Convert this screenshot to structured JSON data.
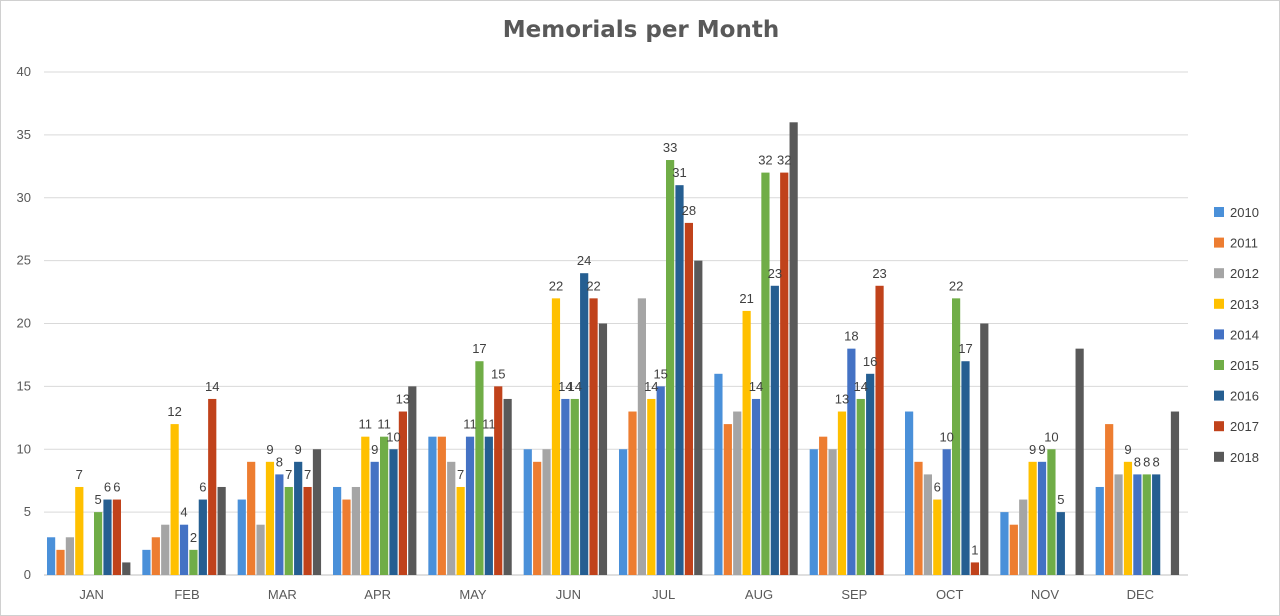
{
  "chart_data": {
    "type": "bar",
    "title": "Memorials per Month",
    "xlabel": "",
    "ylabel": "",
    "ylim": [
      0,
      40
    ],
    "yticks": [
      0,
      5,
      10,
      15,
      20,
      25,
      30,
      35,
      40
    ],
    "grid": true,
    "legend": "right",
    "categories": [
      "JAN",
      "FEB",
      "MAR",
      "APR",
      "MAY",
      "JUN",
      "JUL",
      "AUG",
      "SEP",
      "OCT",
      "NOV",
      "DEC"
    ],
    "series": [
      {
        "name": "2010",
        "color": "#4a90d9",
        "values": [
          3,
          2,
          6,
          7,
          11,
          10,
          10,
          16,
          10,
          13,
          5,
          7
        ],
        "labels": [
          false,
          false,
          false,
          false,
          false,
          false,
          false,
          false,
          false,
          false,
          false,
          false
        ]
      },
      {
        "name": "2011",
        "color": "#ed7d31",
        "values": [
          2,
          3,
          9,
          6,
          11,
          9,
          13,
          12,
          11,
          9,
          4,
          12
        ],
        "labels": [
          false,
          false,
          false,
          false,
          false,
          false,
          false,
          false,
          false,
          false,
          false,
          false
        ]
      },
      {
        "name": "2012",
        "color": "#a5a5a5",
        "values": [
          3,
          4,
          4,
          7,
          9,
          10,
          22,
          13,
          10,
          8,
          6,
          8
        ],
        "labels": [
          false,
          false,
          false,
          false,
          false,
          false,
          false,
          false,
          false,
          false,
          false,
          false
        ]
      },
      {
        "name": "2013",
        "color": "#ffc000",
        "values": [
          7,
          12,
          9,
          11,
          7,
          22,
          14,
          21,
          13,
          6,
          9,
          9
        ],
        "labels": [
          true,
          true,
          true,
          true,
          true,
          true,
          true,
          true,
          true,
          true,
          true,
          true
        ]
      },
      {
        "name": "2014",
        "color": "#4472c4",
        "values": [
          null,
          4,
          8,
          9,
          11,
          14,
          15,
          14,
          18,
          10,
          9,
          8
        ],
        "labels": [
          false,
          true,
          true,
          true,
          true,
          true,
          true,
          true,
          true,
          true,
          true,
          true
        ]
      },
      {
        "name": "2015",
        "color": "#70ad47",
        "values": [
          5,
          2,
          7,
          11,
          17,
          14,
          33,
          32,
          14,
          22,
          10,
          8
        ],
        "labels": [
          true,
          true,
          true,
          true,
          true,
          true,
          true,
          true,
          true,
          true,
          true,
          true
        ]
      },
      {
        "name": "2016",
        "color": "#255e91",
        "values": [
          6,
          6,
          9,
          10,
          11,
          24,
          31,
          23,
          16,
          17,
          5,
          8
        ],
        "labels": [
          true,
          true,
          true,
          true,
          true,
          true,
          true,
          true,
          true,
          true,
          true,
          true
        ]
      },
      {
        "name": "2017",
        "color": "#c0421b",
        "values": [
          6,
          14,
          7,
          13,
          15,
          22,
          28,
          32,
          23,
          1,
          null,
          null
        ],
        "labels": [
          true,
          true,
          true,
          true,
          true,
          true,
          true,
          true,
          true,
          true,
          false,
          false
        ]
      },
      {
        "name": "2018",
        "color": "#595959",
        "values": [
          1,
          7,
          10,
          15,
          14,
          20,
          25,
          36,
          null,
          20,
          18,
          13
        ],
        "labels": [
          false,
          false,
          false,
          false,
          false,
          false,
          false,
          false,
          false,
          false,
          false,
          false
        ]
      }
    ]
  }
}
